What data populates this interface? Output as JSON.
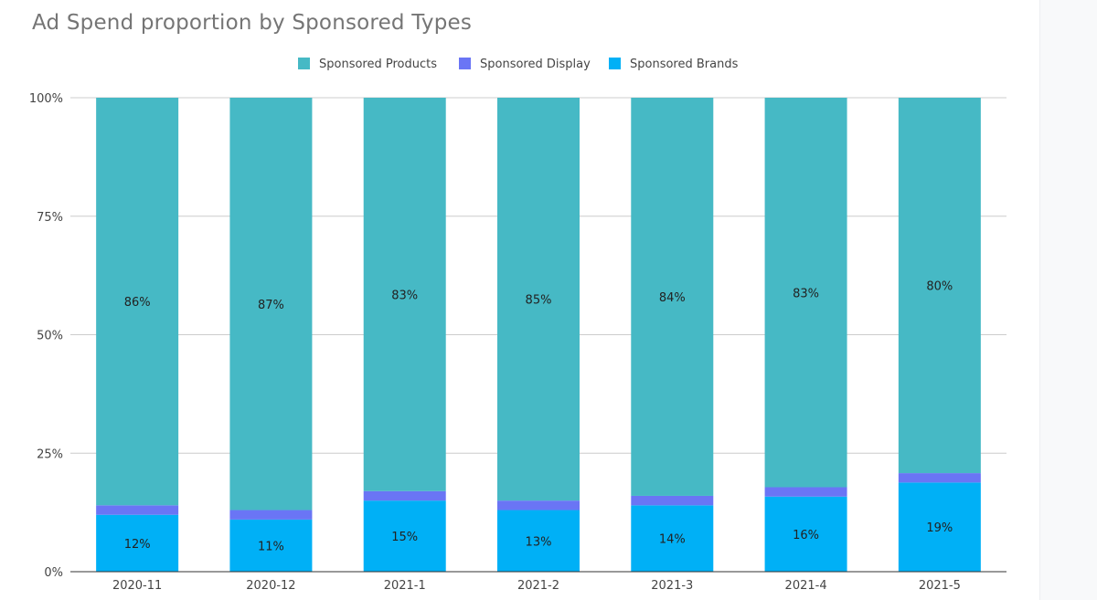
{
  "chart_data": {
    "type": "bar",
    "stacked": true,
    "percent_stacked": true,
    "title": "Ad Spend proportion by Sponsored Types",
    "categories": [
      "2020-11",
      "2020-12",
      "2021-1",
      "2021-2",
      "2021-3",
      "2021-4",
      "2021-5"
    ],
    "series": [
      {
        "name": "Sponsored Brands",
        "color": "#00b0f6",
        "values": [
          12,
          11,
          15,
          13,
          14,
          16,
          19
        ],
        "labels": [
          "12%",
          "11%",
          "15%",
          "13%",
          "14%",
          "16%",
          "19%"
        ]
      },
      {
        "name": "Sponsored Display",
        "color": "#6a75f5",
        "values": [
          2,
          2,
          2,
          2,
          2,
          2,
          2
        ],
        "labels": [
          "2%",
          "2%",
          "2%",
          "2%",
          "2%",
          "2%",
          "2%"
        ]
      },
      {
        "name": "Sponsored Products",
        "color": "#46b9c5",
        "values": [
          86,
          87,
          83,
          85,
          84,
          83,
          80
        ],
        "labels": [
          "86%",
          "87%",
          "83%",
          "85%",
          "84%",
          "83%",
          "80%"
        ]
      }
    ],
    "legend_order": [
      "Sponsored Products",
      "Sponsored Display",
      "Sponsored Brands"
    ],
    "legend_position": "top",
    "yticks": [
      "0%",
      "25%",
      "50%",
      "75%",
      "100%"
    ],
    "ylim": [
      0,
      100
    ],
    "grid": true,
    "xlabel": "",
    "ylabel": ""
  }
}
